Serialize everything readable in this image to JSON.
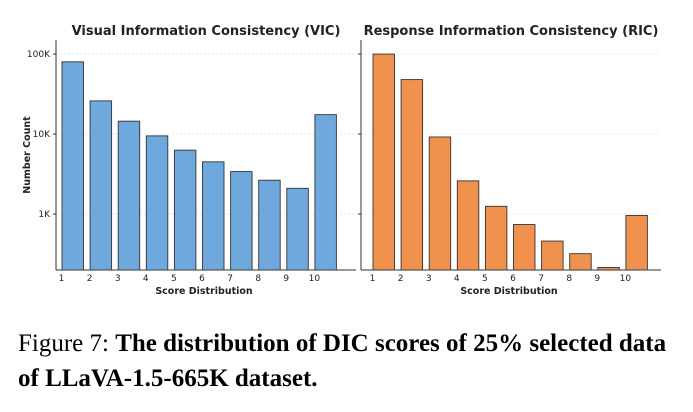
{
  "caption": {
    "label": "Figure 7:",
    "text": "The distribution of DIC scores of 25% selected data of LLaVA-1.5-665K dataset."
  },
  "chart_data": [
    {
      "type": "bar",
      "title": "Visual Information Consistency (VIC)",
      "xlabel": "Score Distribution",
      "ylabel": "Number Count",
      "yscale": "log",
      "ylim": [
        200,
        150000
      ],
      "yticks": [
        1000,
        10000,
        100000
      ],
      "ytick_labels": [
        "1K",
        "10K",
        "100K"
      ],
      "categories": [
        "1",
        "2",
        "3",
        "4",
        "5",
        "6",
        "7",
        "8",
        "9",
        "10"
      ],
      "values": [
        80000,
        26000,
        14500,
        9500,
        6300,
        4500,
        3400,
        2650,
        2100,
        17500
      ],
      "color": "#6fa8dc",
      "grid": true
    },
    {
      "type": "bar",
      "title": "Response Information Consistency (RIC)",
      "xlabel": "Score Distribution",
      "ylabel": "",
      "yscale": "log",
      "ylim": [
        200,
        150000
      ],
      "yticks": [
        1000,
        10000,
        100000
      ],
      "ytick_labels": [],
      "categories": [
        "1",
        "2",
        "3",
        "4",
        "5",
        "6",
        "7",
        "8",
        "9",
        "10"
      ],
      "values": [
        100000,
        48000,
        9200,
        2600,
        1250,
        740,
        460,
        320,
        215,
        960
      ],
      "color": "#f0914e",
      "grid": true
    }
  ]
}
